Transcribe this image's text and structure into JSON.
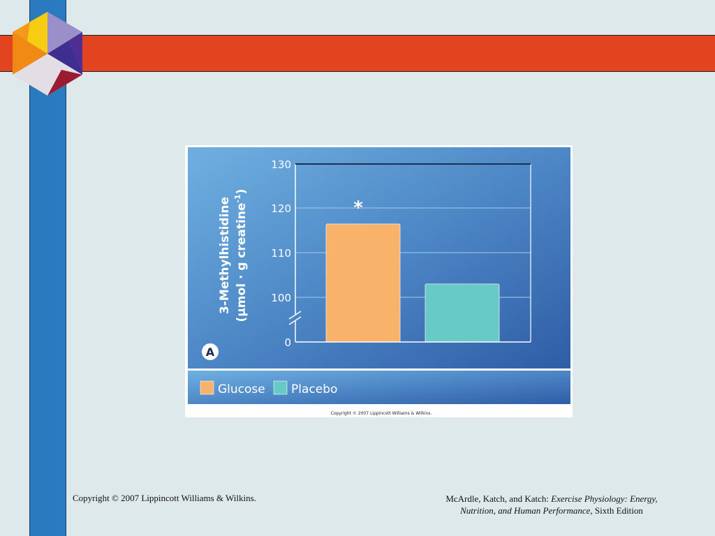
{
  "slide": {
    "footer_left": "Copyright © 2007 Lippincott Williams & Wilkins.",
    "footer_right_prefix": "McArdle, Katch, and Katch: ",
    "footer_right_title_1": "Exercise Physiology: Energy,",
    "footer_right_title_2": "Nutrition, and Human Performance,",
    "footer_right_suffix": " Sixth Edition"
  },
  "figure": {
    "panel_letter": "A",
    "asterisk": "*",
    "copyright_small": "Copyright © 2007 Lippincott Williams & Wilkins."
  },
  "chart_data": {
    "type": "bar",
    "ylabel_line1": "3-Methylhistidine",
    "ylabel_line2": "(µmol · g creatine",
    "ylabel_sup": "-1",
    "ylabel_close": ")",
    "yticks": [
      0,
      100,
      110,
      120,
      130
    ],
    "axis_break": true,
    "ylim": [
      90,
      130
    ],
    "categories": [
      "Glucose",
      "Placebo"
    ],
    "values": [
      116.5,
      103
    ],
    "colors": [
      "#f8b26a",
      "#68cac6"
    ],
    "annotations": [
      {
        "category": "Glucose",
        "text": "*"
      }
    ],
    "legend": [
      {
        "label": "Glucose",
        "color": "#f8b26a"
      },
      {
        "label": "Placebo",
        "color": "#68cac6"
      }
    ],
    "legend_placement": "bottom",
    "grid": true
  }
}
